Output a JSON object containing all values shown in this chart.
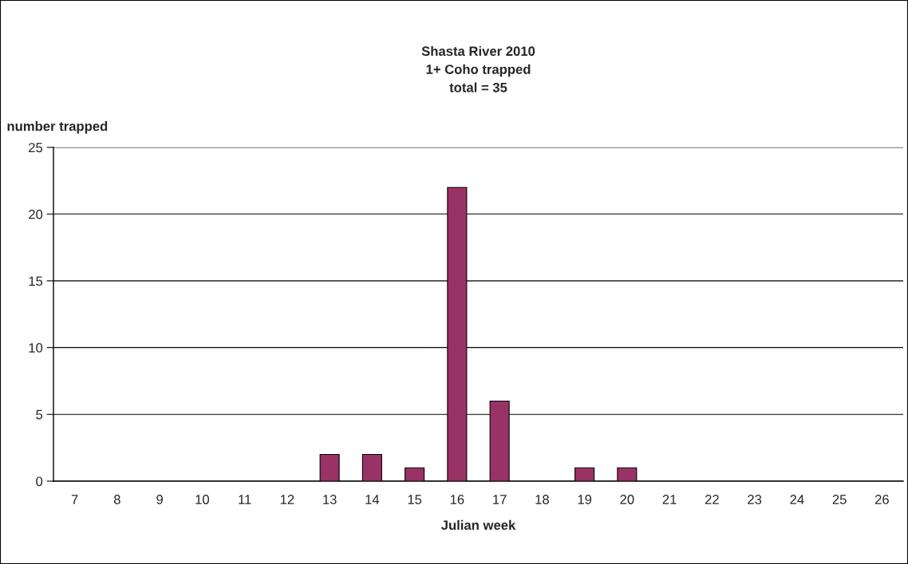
{
  "chart_data": {
    "type": "bar",
    "title": "Shasta River 2010\n1+ Coho trapped\ntotal = 35",
    "ylabel": "number trapped",
    "xlabel": "Julian week",
    "categories": [
      "7",
      "8",
      "9",
      "10",
      "11",
      "12",
      "13",
      "14",
      "15",
      "16",
      "17",
      "18",
      "19",
      "20",
      "21",
      "22",
      "23",
      "24",
      "25",
      "26"
    ],
    "values": [
      0,
      0,
      0,
      0,
      0,
      0,
      2,
      2,
      1,
      22,
      6,
      0,
      1,
      1,
      0,
      0,
      0,
      0,
      0,
      0
    ],
    "color": "#993366",
    "ylim": [
      0,
      25
    ],
    "yticks": [
      0,
      5,
      10,
      15,
      20,
      25
    ],
    "grid": "y"
  }
}
